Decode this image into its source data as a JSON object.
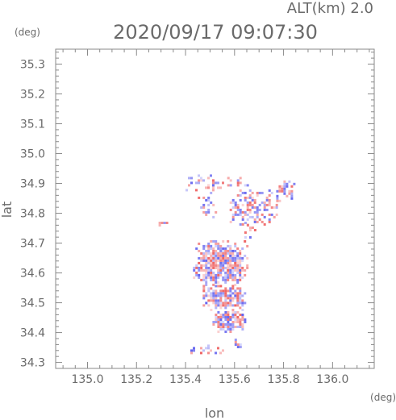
{
  "header": {
    "alt_label": "ALT(km) 2.0",
    "timestamp": "2020/09/17 09:07:30"
  },
  "chart_data": {
    "type": "heatmap",
    "title": "2020/09/17 09:07:30",
    "subtitle": "ALT(km) 2.0",
    "xlabel": "lon",
    "ylabel": "lat",
    "x_unit": "(deg)",
    "y_unit": "(deg)",
    "xlim": [
      134.87,
      136.17
    ],
    "ylim": [
      34.28,
      35.35
    ],
    "x_ticks": [
      135.0,
      135.2,
      135.4,
      135.6,
      135.8,
      136.0
    ],
    "x_tick_labels": [
      "135.0",
      "135.2",
      "135.4",
      "135.6",
      "135.8",
      "136.0"
    ],
    "y_ticks": [
      34.3,
      34.4,
      34.5,
      34.6,
      34.7,
      34.8,
      34.9,
      35.0,
      35.1,
      35.2,
      35.3
    ],
    "y_tick_labels": [
      "34.3",
      "34.4",
      "34.5",
      "34.6",
      "34.7",
      "34.8",
      "34.9",
      "35.0",
      "35.1",
      "35.2",
      "35.3"
    ],
    "grid": false,
    "colors": {
      "positive": "#ee5c5c",
      "negative": "#5c5cee",
      "frame": "#8a8a8a",
      "text": "#6a6a6a"
    },
    "echo_regions": [
      {
        "lon_min": 135.4,
        "lon_max": 135.56,
        "lat_min": 34.88,
        "lat_max": 34.93,
        "density": 0.35
      },
      {
        "lon_min": 135.56,
        "lon_max": 135.65,
        "lat_min": 34.89,
        "lat_max": 34.93,
        "density": 0.35
      },
      {
        "lon_min": 135.45,
        "lon_max": 135.52,
        "lat_min": 34.78,
        "lat_max": 34.88,
        "density": 0.3
      },
      {
        "lon_min": 135.57,
        "lon_max": 135.77,
        "lat_min": 34.76,
        "lat_max": 34.88,
        "density": 0.45
      },
      {
        "lon_min": 135.75,
        "lon_max": 135.84,
        "lat_min": 34.84,
        "lat_max": 34.91,
        "density": 0.5
      },
      {
        "lon_min": 135.63,
        "lon_max": 135.68,
        "lat_min": 34.72,
        "lat_max": 34.78,
        "density": 0.35
      },
      {
        "lon_min": 135.43,
        "lon_max": 135.65,
        "lat_min": 34.56,
        "lat_max": 34.71,
        "density": 0.85
      },
      {
        "lon_min": 135.47,
        "lon_max": 135.65,
        "lat_min": 34.48,
        "lat_max": 34.56,
        "density": 0.85
      },
      {
        "lon_min": 135.5,
        "lon_max": 135.64,
        "lat_min": 34.4,
        "lat_max": 34.48,
        "density": 0.75
      },
      {
        "lon_min": 135.4,
        "lon_max": 135.57,
        "lat_min": 34.33,
        "lat_max": 34.36,
        "density": 0.4
      },
      {
        "lon_min": 135.59,
        "lon_max": 135.62,
        "lat_min": 34.35,
        "lat_max": 34.38,
        "density": 0.5
      },
      {
        "lon_min": 135.28,
        "lon_max": 135.32,
        "lat_min": 34.76,
        "lat_max": 34.78,
        "density": 0.5
      }
    ]
  }
}
